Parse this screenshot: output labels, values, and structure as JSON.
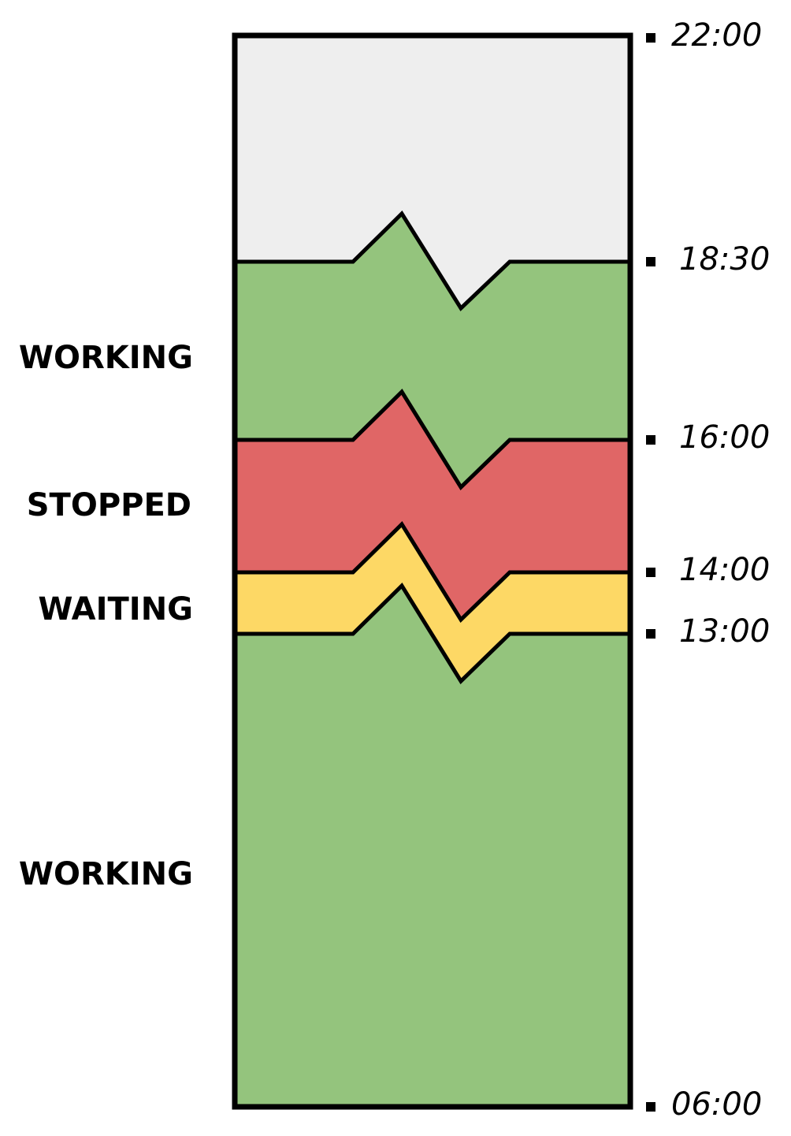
{
  "timeline": {
    "start": "06:00",
    "end": "22:00",
    "boundaries": [
      "06:00",
      "13:00",
      "14:00",
      "16:00",
      "18:30",
      "22:00"
    ],
    "segments": [
      {
        "state": "WORKING",
        "from": "06:00",
        "to": "13:00",
        "color": "#94c47d"
      },
      {
        "state": "WAITING",
        "from": "13:00",
        "to": "14:00",
        "color": "#fdd865"
      },
      {
        "state": "STOPPED",
        "from": "14:00",
        "to": "16:00",
        "color": "#e06666"
      },
      {
        "state": "WORKING",
        "from": "16:00",
        "to": "18:30",
        "color": "#94c47d"
      },
      {
        "state": "",
        "from": "18:30",
        "to": "22:00",
        "color": "#eeeeee"
      }
    ],
    "break_symbol": "zigzag"
  },
  "labels": {
    "working_upper": "WORKING",
    "stopped": "STOPPED",
    "waiting": "WAITING",
    "working_lower": "WORKING"
  },
  "times": {
    "t2200": "22:00",
    "t1830": "18:30",
    "t1600": "16:00",
    "t1400": "14:00",
    "t1300": "13:00",
    "t0600": "06:00"
  },
  "colors": {
    "working": "#94c47d",
    "waiting": "#fdd865",
    "stopped": "#e06666",
    "idle": "#eeeeee",
    "outline": "#000000"
  }
}
